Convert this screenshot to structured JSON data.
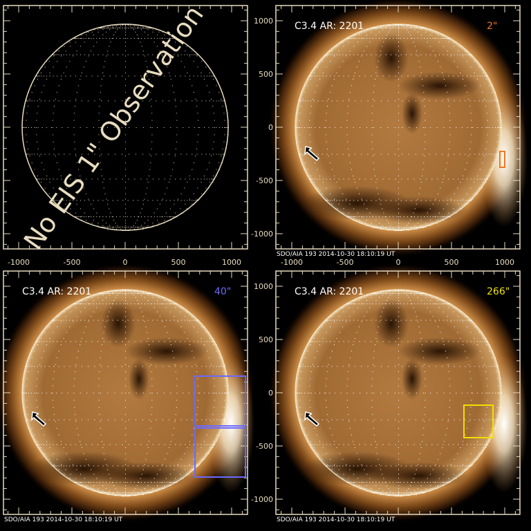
{
  "figure": {
    "axis_color": "#e8dcc0",
    "x_ticks": [
      -1000,
      -500,
      0,
      500,
      1000
    ],
    "y_ticks": [
      1000,
      500,
      0,
      -500,
      -1000
    ],
    "timestamp": "SDO/AIA 193  2014-10-30 18:10:19 UT",
    "panels": [
      {
        "id": "top-left",
        "overlay_text": "No EIS 1\" Observation",
        "has_image": false
      },
      {
        "id": "top-right",
        "title": "C3.4 AR: 2201",
        "fov_label": "2\"",
        "fov_color": "#f07820",
        "has_image": true
      },
      {
        "id": "bottom-left",
        "title": "C3.4 AR: 2201",
        "fov_label": "40\"",
        "fov_color": "#6a6aff",
        "has_image": true
      },
      {
        "id": "bottom-right",
        "title": "C3.4 AR: 2201",
        "fov_label": "266\"",
        "fov_color": "#f0e000",
        "has_image": true
      }
    ]
  }
}
